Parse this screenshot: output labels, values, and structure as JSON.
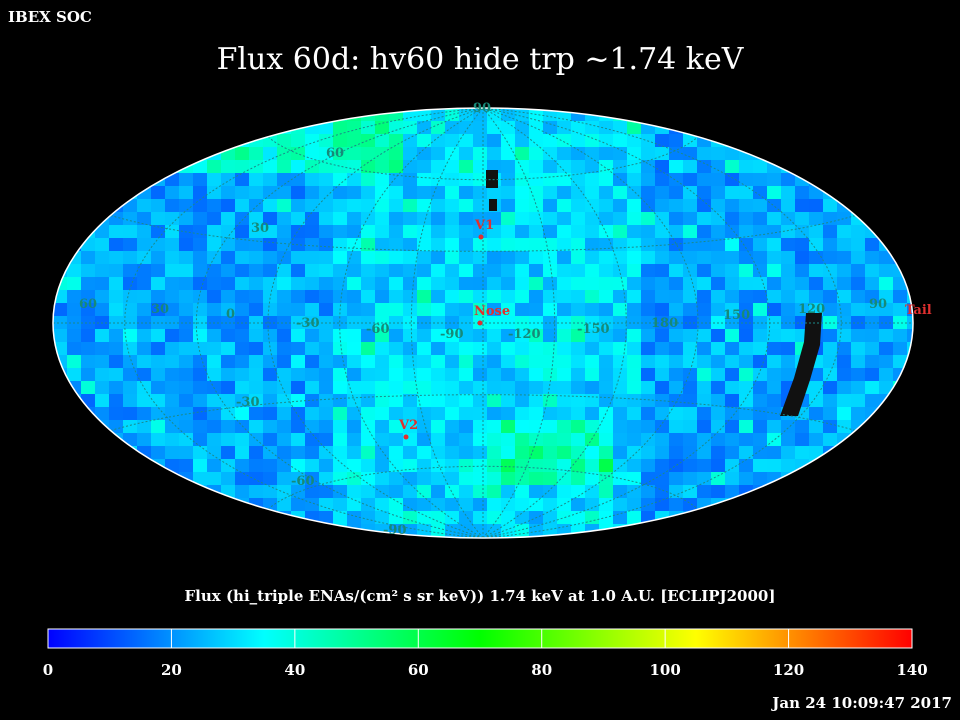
{
  "header": {
    "soc_label": "IBEX SOC",
    "title": "Flux   60d: hv60 hide trp ~1.74 keV"
  },
  "map": {
    "projection": "aitoff",
    "grid_labels": {
      "lat": [
        "60",
        "30",
        "-30",
        "-60"
      ],
      "lat_poles": [
        "90",
        "-90"
      ],
      "lon": [
        "60",
        "30",
        "0",
        "-30",
        "-60",
        "-90",
        "-120",
        "-150",
        "180",
        "150",
        "120",
        "90"
      ]
    },
    "markers": [
      {
        "label": "V1",
        "color": "#e03030"
      },
      {
        "label": "Nose",
        "color": "#e03030"
      },
      {
        "label": "V2",
        "color": "#e03030"
      },
      {
        "label": "Tail",
        "color": "#e03030"
      }
    ],
    "grid_color": "#1a8a8a",
    "missing_color": "#111111"
  },
  "colorbar": {
    "label": "Flux (hi_triple ENAs/(cm² s sr keV))  1.74 keV at 1.0 A.U. [ECLIPJ2000]",
    "min": 0,
    "max": 140,
    "ticks": [
      "0",
      "20",
      "40",
      "60",
      "80",
      "100",
      "120",
      "140"
    ],
    "colors": [
      "#0000ff",
      "#00ffff",
      "#00ff00",
      "#ffff00",
      "#ff0000"
    ]
  },
  "footer": {
    "timestamp": "Jan 24 10:09:47 2017"
  }
}
